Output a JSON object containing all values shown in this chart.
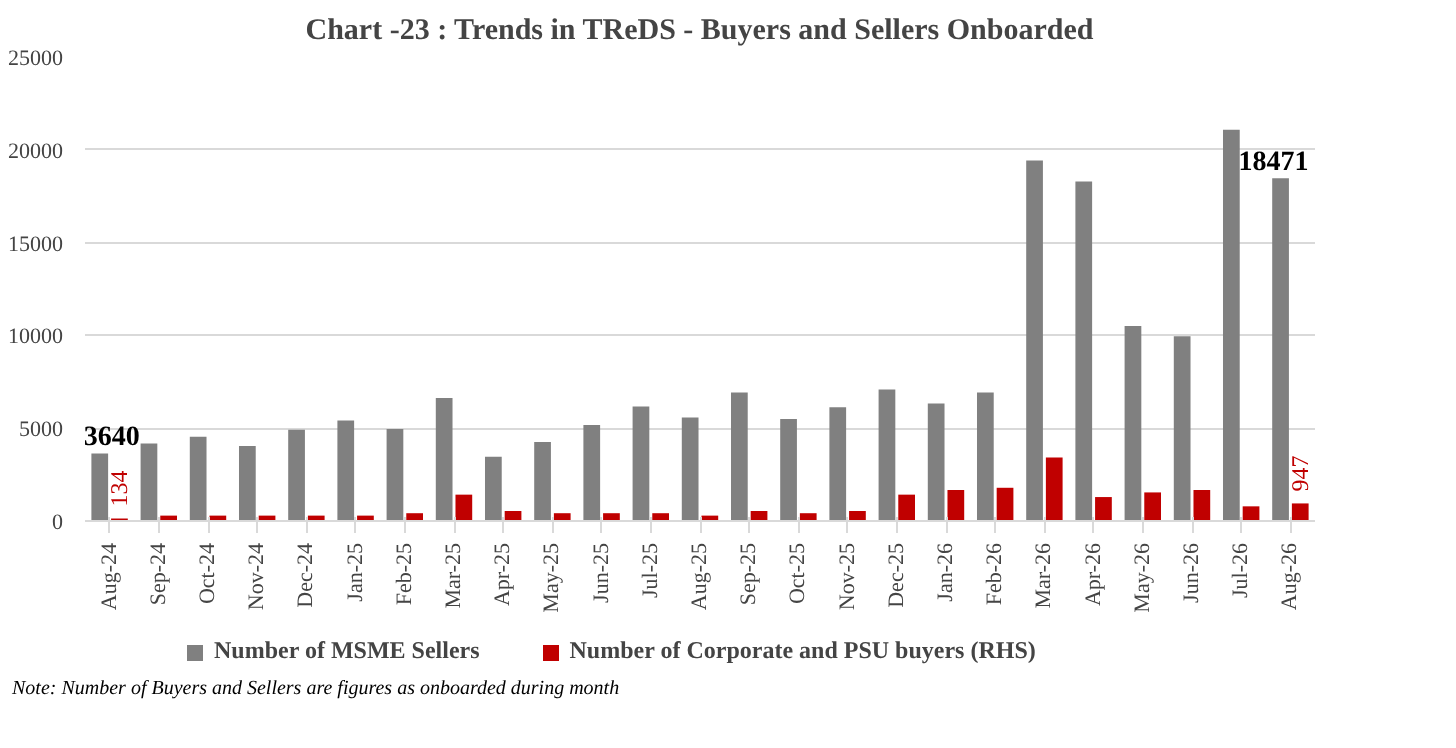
{
  "chart_data": {
    "type": "bar",
    "title": "Chart -23 : Trends in TReDS - Buyers and Sellers Onboarded",
    "categories": [
      "Aug-24",
      "Sep-24",
      "Oct-24",
      "Nov-24",
      "Dec-24",
      "Jan-25",
      "Feb-25",
      "Mar-25",
      "Apr-25",
      "May-25",
      "Jun-25",
      "Jul-25",
      "Aug-25",
      "Sep-25",
      "Oct-25",
      "Nov-25",
      "Dec-25",
      "Jan-26",
      "Feb-26",
      "Mar-26",
      "Apr-26",
      "May-26",
      "Jun-26",
      "Jul-26",
      "Aug-26"
    ],
    "series": [
      {
        "name": "Number of MSME Sellers",
        "color": "#808080",
        "values": [
          3640,
          4170,
          4540,
          4040,
          4920,
          5420,
          4960,
          6630,
          3460,
          4250,
          5170,
          6170,
          5580,
          6920,
          5500,
          6130,
          7080,
          6330,
          6920,
          19420,
          18290,
          10500,
          9960,
          21080,
          18471
        ],
        "value_labels": [
          "3640",
          null,
          null,
          null,
          null,
          null,
          null,
          null,
          null,
          null,
          null,
          null,
          null,
          null,
          null,
          null,
          null,
          null,
          null,
          null,
          null,
          null,
          null,
          null,
          "18471"
        ]
      },
      {
        "name": "Number of Corporate and PSU buyers (RHS)",
        "color": "#c00000",
        "values": [
          134,
          290,
          290,
          290,
          290,
          290,
          420,
          1420,
          540,
          420,
          420,
          420,
          290,
          540,
          420,
          540,
          1420,
          1670,
          1790,
          3420,
          1290,
          1540,
          1670,
          790,
          947
        ],
        "value_labels": [
          "134",
          null,
          null,
          null,
          null,
          null,
          null,
          null,
          null,
          null,
          null,
          null,
          null,
          null,
          null,
          null,
          null,
          null,
          null,
          null,
          null,
          null,
          null,
          null,
          "947"
        ]
      }
    ],
    "ylim": [
      0,
      25000
    ],
    "yticks": [
      0,
      5000,
      10000,
      15000,
      20000,
      25000
    ],
    "grid": "y",
    "legend": "bottom",
    "annotations": [
      "Note: Number of Buyers and Sellers are figures as onboarded during month"
    ]
  }
}
